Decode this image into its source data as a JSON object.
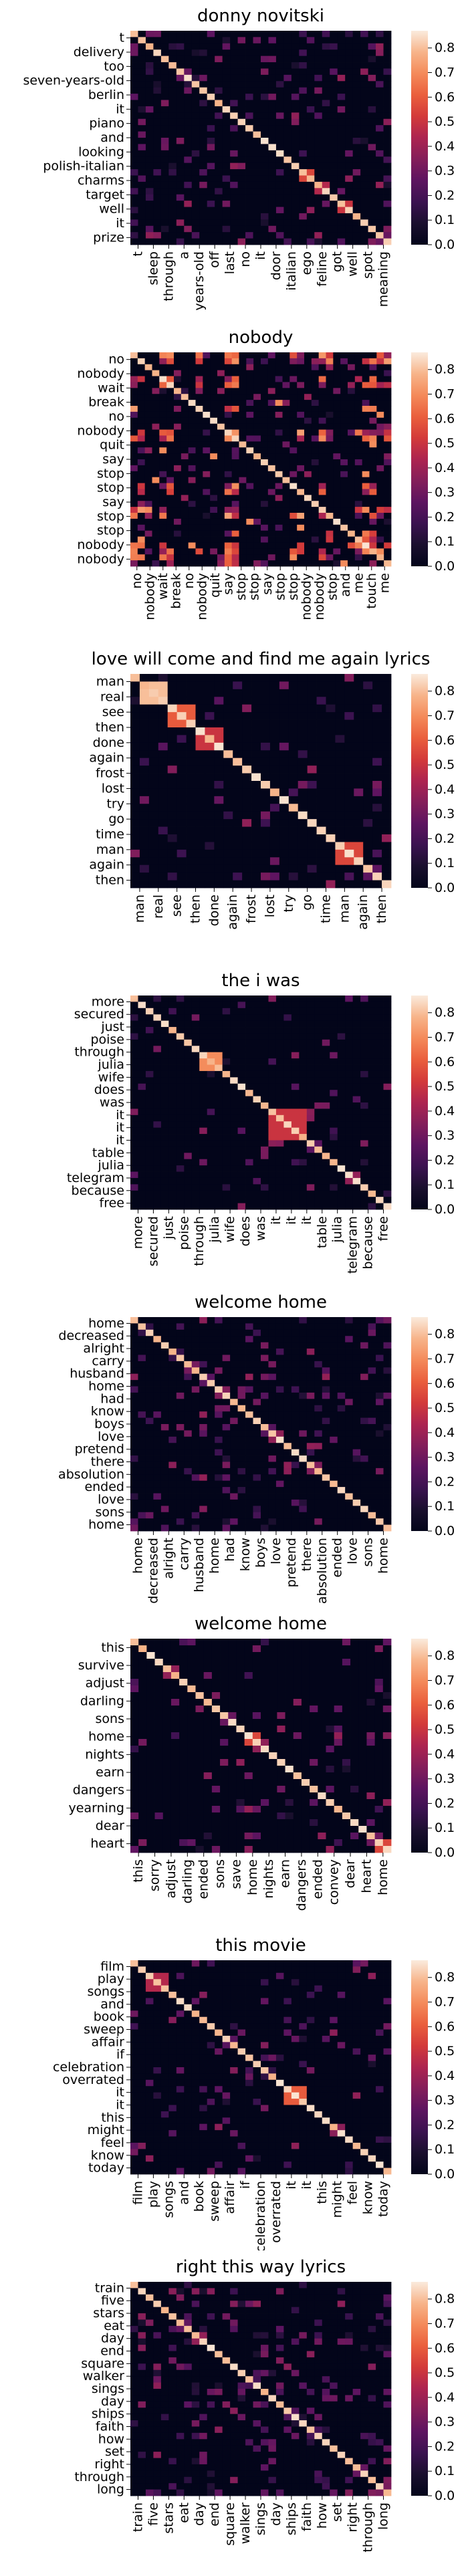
{
  "colorscale": {
    "name": "rocket",
    "stops": [
      "#03051a",
      "#1a0f2e",
      "#3b1250",
      "#5d1460",
      "#841e5a",
      "#ad2450",
      "#d33a3a",
      "#ea5f3d",
      "#f48a5a",
      "#f7b48a",
      "#faebdd"
    ],
    "ticks": [
      0.0,
      0.1,
      0.2,
      0.3,
      0.4,
      0.5,
      0.6,
      0.7,
      0.8
    ],
    "range": [
      0.0,
      0.87
    ]
  },
  "chart_data": [
    {
      "type": "heatmap",
      "title": "donny novitski",
      "ylabels": [
        "t",
        "delivery",
        "too",
        "seven-years-old",
        "berlin",
        "it",
        "piano",
        "and",
        "looking",
        "polish-italian",
        "charms",
        "target",
        "well",
        "it",
        "prize"
      ],
      "xlabels": [
        "t",
        "sleep",
        "through",
        "a",
        "years-old",
        "off",
        "last",
        "no",
        "it",
        "door",
        "italian",
        "ego",
        "feline",
        "got",
        "well",
        "spot",
        "meaning"
      ],
      "n": 34,
      "seed": 11,
      "density": 0.08,
      "blocks": [
        [
          22,
          23,
          0.55
        ],
        [
          24,
          25,
          0.45
        ],
        [
          27,
          28,
          0.5
        ]
      ]
    },
    {
      "type": "heatmap",
      "title": "nobody",
      "ylabels": [
        "no",
        "nobody",
        "wait",
        "break",
        "no",
        "nobody",
        "quit",
        "say",
        "stop",
        "stop",
        "say",
        "stop",
        "stop",
        "nobody",
        "nobody"
      ],
      "xlabels": [
        "no",
        "nobody",
        "wait",
        "break",
        "no",
        "nobody",
        "quit",
        "say",
        "stop",
        "stop",
        "say",
        "stop",
        "stop",
        "nobody",
        "nobody",
        "stop",
        "and",
        "me",
        "touch",
        "me"
      ],
      "n": 36,
      "seed": 23,
      "density": 0.05,
      "stripes": true,
      "blocks": []
    },
    {
      "type": "heatmap",
      "title": "love will come and find me again lyrics",
      "ylabels": [
        "man",
        "real",
        "see",
        "then",
        "done",
        "again",
        "frost",
        "lost",
        "try",
        "go",
        "time",
        "man",
        "again",
        "then"
      ],
      "xlabels": [
        "man",
        "real",
        "see",
        "then",
        "done",
        "again",
        "frost",
        "lost",
        "try",
        "go",
        "time",
        "man",
        "again",
        "then"
      ],
      "n": 28,
      "seed": 37,
      "density": 0.04,
      "blocks": [
        [
          1,
          3,
          0.8
        ],
        [
          4,
          6,
          0.6
        ],
        [
          7,
          9,
          0.5
        ],
        [
          22,
          24,
          0.55
        ]
      ]
    },
    {
      "type": "heatmap",
      "title": "the i was",
      "ylabels": [
        "more",
        "secured",
        "just",
        "poise",
        "through",
        "julia",
        "wife",
        "does",
        "was",
        "it",
        "it",
        "it",
        "table",
        "julia",
        "telegram",
        "because",
        "free"
      ],
      "xlabels": [
        "more",
        "secured",
        "just",
        "poise",
        "through",
        "julia",
        "wife",
        "does",
        "was",
        "it",
        "it",
        "it",
        "table",
        "julia",
        "telegram",
        "because",
        "free"
      ],
      "n": 34,
      "seed": 41,
      "density": 0.03,
      "blocks": [
        [
          18,
          22,
          0.5
        ],
        [
          9,
          11,
          0.7
        ]
      ]
    },
    {
      "type": "heatmap",
      "title": "welcome home",
      "ylabels": [
        "home",
        "decreased",
        "alright",
        "carry",
        "husband",
        "home",
        "had",
        "know",
        "boys",
        "love",
        "pretend",
        "there",
        "absolution",
        "ended",
        "love",
        "sons",
        "home"
      ],
      "xlabels": [
        "home",
        "decreased",
        "alright",
        "carry",
        "husband",
        "home",
        "had",
        "know",
        "boys",
        "love",
        "pretend",
        "there",
        "absolution",
        "ended",
        "love",
        "sons",
        "home"
      ],
      "n": 34,
      "seed": 53,
      "density": 0.08,
      "blocks": []
    },
    {
      "type": "heatmap",
      "title": "welcome home",
      "ylabels": [
        "this",
        "survive",
        "adjust",
        "darling",
        "sons",
        "home",
        "nights",
        "earn",
        "dangers",
        "yearning",
        "dear",
        "heart"
      ],
      "xlabels": [
        "this",
        "sorry",
        "adjust",
        "darling",
        "ended",
        "sons",
        "save",
        "home",
        "nights",
        "earn",
        "dangers",
        "ended",
        "convey",
        "dear",
        "heart",
        "home"
      ],
      "n": 32,
      "seed": 67,
      "density": 0.035,
      "blocks": [
        [
          14,
          15,
          0.55
        ],
        [
          30,
          31,
          0.55
        ]
      ]
    },
    {
      "type": "heatmap",
      "title": "this movie",
      "ylabels": [
        "film",
        "play",
        "songs",
        "and",
        "book",
        "sweep",
        "affair",
        "if",
        "celebration",
        "overrated",
        "it",
        "it",
        "this",
        "might",
        "feel",
        "know",
        "today"
      ],
      "xlabels": [
        "film",
        "play",
        "songs",
        "and",
        "book",
        "sweep",
        "affair",
        "if",
        "celebration",
        "overrated",
        "it",
        "it",
        "this",
        "might",
        "feel",
        "know",
        "today"
      ],
      "n": 34,
      "seed": 71,
      "density": 0.04,
      "blocks": [
        [
          20,
          22,
          0.6
        ],
        [
          2,
          4,
          0.45
        ]
      ]
    },
    {
      "type": "heatmap",
      "title": "right this way lyrics",
      "ylabels": [
        "train",
        "five",
        "stars",
        "eat",
        "day",
        "end",
        "square",
        "walker",
        "sings",
        "day",
        "ships",
        "faith",
        "how",
        "set",
        "right",
        "through",
        "long"
      ],
      "xlabels": [
        "train",
        "five",
        "stars",
        "eat",
        "day",
        "end",
        "square",
        "walker",
        "sings",
        "day",
        "ships",
        "faith",
        "how",
        "set",
        "right",
        "through",
        "long"
      ],
      "n": 34,
      "seed": 83,
      "density": 0.09,
      "blocks": []
    }
  ]
}
